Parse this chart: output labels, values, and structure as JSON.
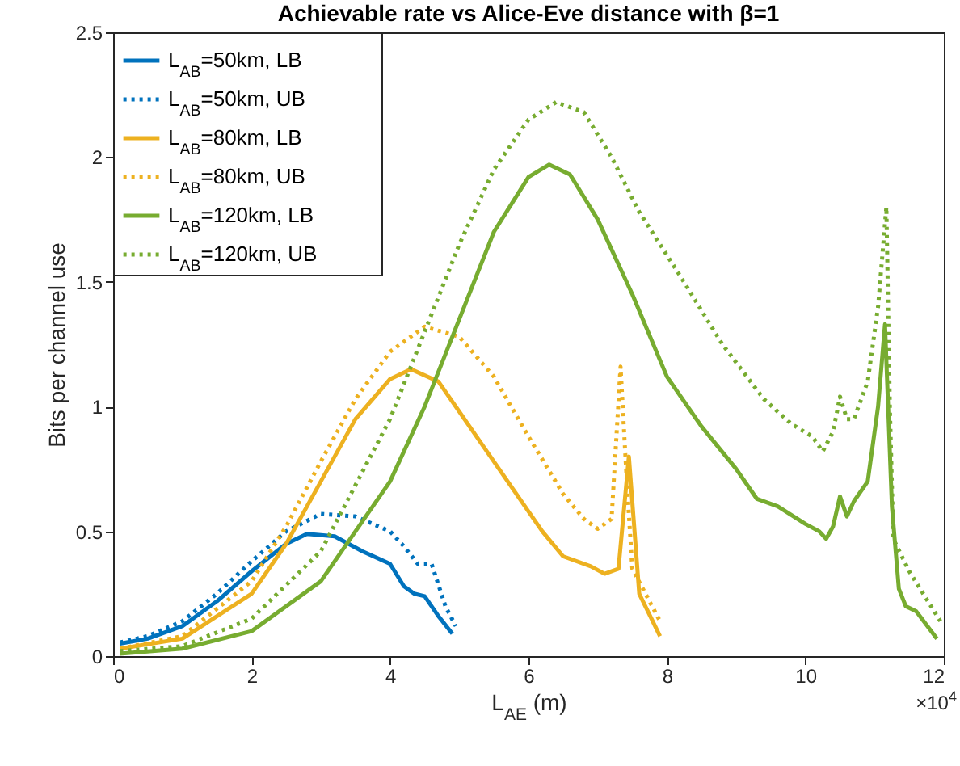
{
  "chart_data": {
    "type": "line",
    "title": "Achievable rate vs Alice-Eve distance with β=1",
    "xlabel": "L$_{AE}$ (m)",
    "ylabel": "Bits per channel use",
    "annotations": [
      "×10$^{4}$"
    ],
    "xlim": [
      0,
      12
    ],
    "xticks": [
      0,
      2,
      4,
      6,
      8,
      10,
      12
    ],
    "ylim": [
      0,
      2.5
    ],
    "yticks": [
      0,
      0.5,
      1,
      1.5,
      2,
      2.5
    ],
    "grid": false,
    "legend": "top left",
    "marker": "none",
    "series": [
      {
        "name": "L$_{AB}$=50km, LB",
        "color": "#0072bd",
        "line_style": "solid",
        "x": [
          0.1,
          0.5,
          1,
          1.5,
          2,
          2.5,
          2.8,
          3.2,
          3.6,
          4,
          4.2,
          4.35,
          4.5,
          4.7,
          4.9
        ],
        "values": [
          0.05,
          0.07,
          0.12,
          0.22,
          0.34,
          0.45,
          0.49,
          0.48,
          0.42,
          0.37,
          0.28,
          0.25,
          0.24,
          0.16,
          0.09
        ]
      },
      {
        "name": "L$_{AB}$=50km, UB",
        "color": "#0072bd",
        "line_style": "dotted",
        "x": [
          0.1,
          0.5,
          1,
          1.5,
          2,
          2.5,
          3,
          3.5,
          4,
          4.2,
          4.4,
          4.6,
          4.8,
          4.95
        ],
        "values": [
          0.055,
          0.08,
          0.14,
          0.25,
          0.38,
          0.5,
          0.57,
          0.56,
          0.5,
          0.44,
          0.37,
          0.37,
          0.2,
          0.12
        ]
      },
      {
        "name": "L$_{AB}$=80km, LB",
        "color": "#edb120",
        "line_style": "solid",
        "x": [
          0.1,
          1,
          2,
          2.5,
          3,
          3.5,
          4,
          4.3,
          4.7,
          5.2,
          5.7,
          6.2,
          6.5,
          6.9,
          7.1,
          7.3,
          7.45,
          7.6,
          7.9
        ],
        "values": [
          0.03,
          0.07,
          0.25,
          0.45,
          0.7,
          0.95,
          1.11,
          1.15,
          1.1,
          0.9,
          0.7,
          0.5,
          0.4,
          0.36,
          0.33,
          0.35,
          0.8,
          0.25,
          0.08
        ]
      },
      {
        "name": "L$_{AB}$=80km, UB",
        "color": "#edb120",
        "line_style": "dotted",
        "x": [
          0.1,
          1,
          2,
          2.5,
          3,
          3.5,
          4,
          4.5,
          5,
          5.5,
          6,
          6.5,
          6.8,
          7,
          7.2,
          7.33,
          7.42,
          7.5,
          7.9
        ],
        "values": [
          0.03,
          0.08,
          0.3,
          0.52,
          0.78,
          1.03,
          1.22,
          1.32,
          1.28,
          1.12,
          0.88,
          0.65,
          0.55,
          0.51,
          0.55,
          1.16,
          0.7,
          0.35,
          0.14
        ]
      },
      {
        "name": "L$_{AB}$=120km, LB",
        "color": "#77ac30",
        "line_style": "solid",
        "x": [
          0.1,
          1,
          2,
          3,
          4,
          4.5,
          5,
          5.5,
          6,
          6.3,
          6.6,
          7,
          7.5,
          8,
          8.5,
          9,
          9.3,
          9.6,
          10,
          10.2,
          10.3,
          10.4,
          10.5,
          10.6,
          10.7,
          10.9,
          11.05,
          11.15,
          11.25,
          11.35,
          11.45,
          11.6,
          11.9
        ],
        "values": [
          0.01,
          0.03,
          0.1,
          0.3,
          0.7,
          1.0,
          1.35,
          1.7,
          1.92,
          1.97,
          1.93,
          1.75,
          1.45,
          1.12,
          0.92,
          0.75,
          0.63,
          0.6,
          0.53,
          0.5,
          0.47,
          0.52,
          0.64,
          0.56,
          0.62,
          0.7,
          1.0,
          1.33,
          0.6,
          0.27,
          0.2,
          0.18,
          0.07
        ]
      },
      {
        "name": "L$_{AB}$=120km, UB",
        "color": "#77ac30",
        "line_style": "dotted",
        "x": [
          0.1,
          1,
          2,
          3,
          4,
          4.5,
          5,
          5.5,
          6,
          6.4,
          6.8,
          7.2,
          7.6,
          8.2,
          8.8,
          9.4,
          9.8,
          10.1,
          10.25,
          10.4,
          10.5,
          10.6,
          10.7,
          10.9,
          11.05,
          11.17,
          11.22,
          11.27,
          11.5,
          11.95
        ],
        "values": [
          0.02,
          0.04,
          0.15,
          0.42,
          0.95,
          1.3,
          1.65,
          1.95,
          2.15,
          2.22,
          2.18,
          2.0,
          1.78,
          1.52,
          1.25,
          1.03,
          0.93,
          0.88,
          0.82,
          0.9,
          1.04,
          0.95,
          0.95,
          1.1,
          1.4,
          1.8,
          1.0,
          0.47,
          0.34,
          0.14
        ]
      }
    ]
  }
}
